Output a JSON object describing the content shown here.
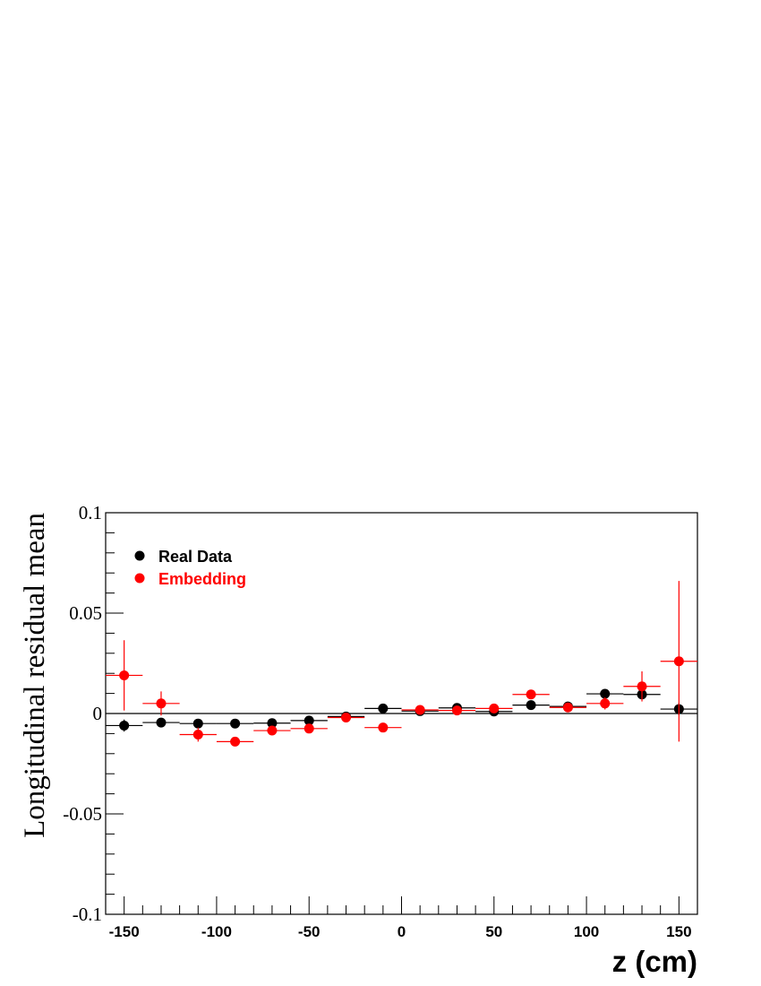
{
  "chart_data": {
    "type": "scatter",
    "xlabel": "z (cm)",
    "ylabel": "Longitudinal residual mean",
    "xlim": [
      -160,
      160
    ],
    "ylim": [
      -0.1,
      0.1
    ],
    "x_ticks": [
      -150,
      -100,
      -50,
      0,
      50,
      100,
      150
    ],
    "x_tick_labels": [
      "-150",
      "-100",
      "-50",
      "0",
      "50",
      "100",
      "150"
    ],
    "y_ticks": [
      -0.1,
      -0.05,
      0,
      0.05,
      0.1
    ],
    "y_tick_labels": [
      "-0.1",
      "-0.05",
      "0",
      "0.05",
      "0.1"
    ],
    "legend_position": "top-left",
    "reference_line_y": 0,
    "bin_half_width": 10,
    "series": [
      {
        "name": "Real Data",
        "color": "#000000",
        "x": [
          -150,
          -130,
          -110,
          -90,
          -70,
          -50,
          -30,
          -10,
          10,
          30,
          50,
          70,
          90,
          110,
          130,
          150
        ],
        "y": [
          -0.006,
          -0.0045,
          -0.005,
          -0.005,
          -0.0048,
          -0.0035,
          -0.0015,
          0.0025,
          0.0012,
          0.0028,
          0.001,
          0.0042,
          0.0035,
          0.0098,
          0.0095,
          0.0022
        ],
        "yerr": [
          0.003,
          0.0015,
          0.001,
          0.001,
          0.001,
          0.001,
          0.001,
          0.001,
          0.001,
          0.001,
          0.001,
          0.001,
          0.001,
          0.0015,
          0.002,
          0.003
        ]
      },
      {
        "name": "Embedding",
        "color": "#ff0000",
        "x": [
          -150,
          -130,
          -110,
          -90,
          -70,
          -50,
          -30,
          -10,
          10,
          30,
          50,
          70,
          90,
          110,
          130,
          150
        ],
        "y": [
          0.019,
          0.005,
          -0.0105,
          -0.014,
          -0.0085,
          -0.0075,
          -0.002,
          -0.007,
          0.0018,
          0.0015,
          0.0025,
          0.0095,
          0.003,
          0.005,
          0.0135,
          0.026
        ],
        "yerr": [
          0.0175,
          0.006,
          0.0035,
          0.002,
          0.002,
          0.002,
          0.0015,
          0.0015,
          0.0015,
          0.0015,
          0.0015,
          0.002,
          0.002,
          0.003,
          0.0075,
          0.04
        ]
      }
    ]
  }
}
